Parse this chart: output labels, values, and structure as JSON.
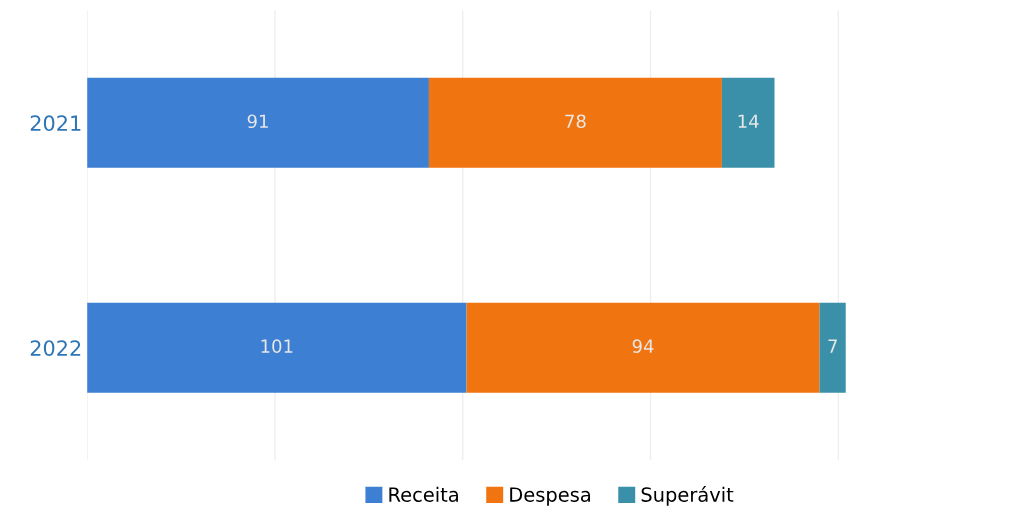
{
  "chart_data": {
    "type": "bar",
    "orientation": "horizontal",
    "stacked": true,
    "categories": [
      "2021",
      "2022"
    ],
    "series": [
      {
        "name": "Receita",
        "color": "#3d7fd3",
        "values": [
          91,
          101
        ]
      },
      {
        "name": "Despesa",
        "color": "#f07511",
        "values": [
          78,
          94
        ]
      },
      {
        "name": "Superávit",
        "color": "#3a90a8",
        "values": [
          14,
          7
        ]
      }
    ],
    "data_labels": true,
    "xticks": [
      {
        "value": 0,
        "label": null
      },
      {
        "value": 50,
        "label": null
      },
      {
        "value": 100,
        "label": null
      },
      {
        "value": 150,
        "label": null
      },
      {
        "value": 200,
        "label": null
      }
    ],
    "tick_labels": "y",
    "grid": "x",
    "legend": "bottom"
  }
}
